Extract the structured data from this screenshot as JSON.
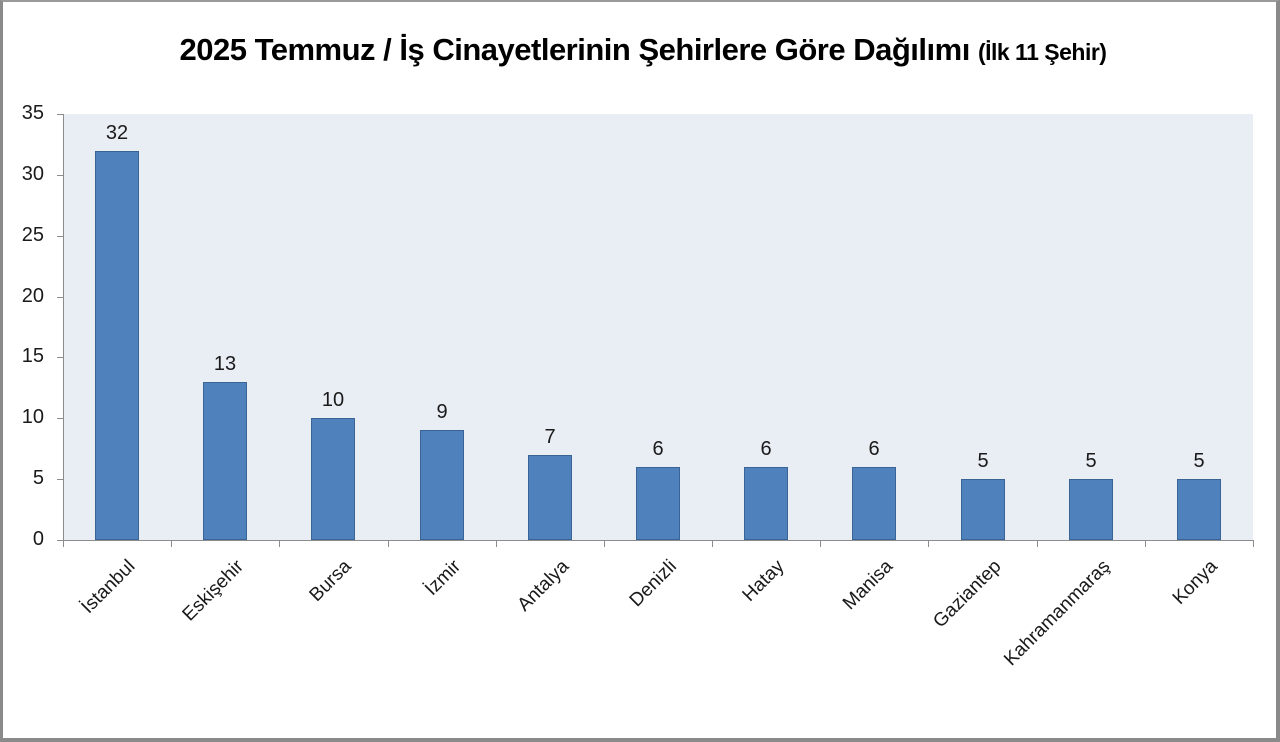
{
  "chart_data": {
    "type": "bar",
    "title": "2025 Temmuz / İş Cinayetlerinin Şehirlere Göre Dağılımı",
    "subtitle": "(İlk 11 Şehir)",
    "xlabel": "",
    "ylabel": "",
    "categories": [
      "İstanbul",
      "Eskişehir",
      "Bursa",
      "İzmir",
      "Antalya",
      "Denizli",
      "Hatay",
      "Manisa",
      "Gaziantep",
      "Kahramanmaraş",
      "Konya"
    ],
    "values": [
      32,
      13,
      10,
      9,
      7,
      6,
      6,
      6,
      5,
      5,
      5
    ],
    "ylim": [
      0,
      35
    ],
    "yticks": [
      0,
      5,
      10,
      15,
      20,
      25,
      30,
      35
    ],
    "grid": false,
    "legend": null,
    "data_labels": true,
    "colors": {
      "bar": "#4f81bd",
      "bar_border": "#3a6496",
      "plot_background": "#e9edf4",
      "axis": "#8c8c8c"
    }
  }
}
